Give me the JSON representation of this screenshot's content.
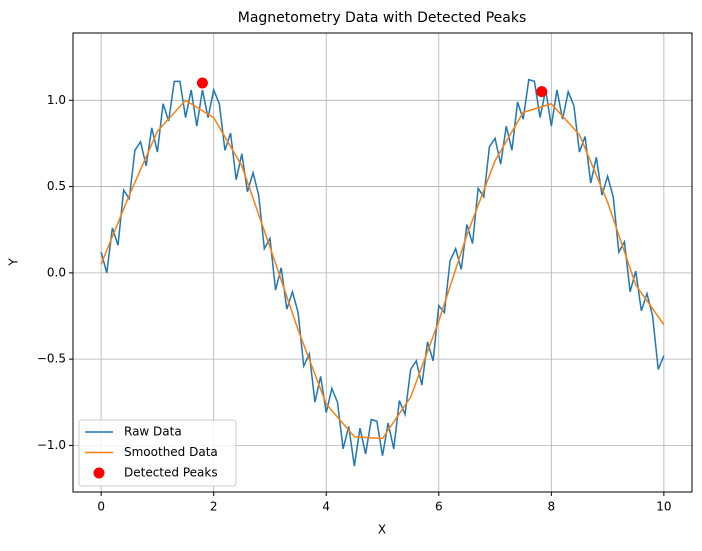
{
  "chart_data": {
    "type": "line",
    "title": "Magnetometry Data with Detected Peaks",
    "x_label": "X",
    "y_label": "Y",
    "xlim": [
      -0.5,
      10.5
    ],
    "ylim": [
      -1.27,
      1.39
    ],
    "xticks": [
      0,
      2,
      4,
      6,
      8,
      10
    ],
    "yticks": [
      {
        "value": -1.0,
        "label": "−1.0"
      },
      {
        "value": -0.5,
        "label": "−0.5"
      },
      {
        "value": 0.0,
        "label": "0.0"
      },
      {
        "value": 0.5,
        "label": "0.5"
      },
      {
        "value": 1.0,
        "label": "1.0"
      }
    ],
    "grid": true,
    "legend": "lower left",
    "series": [
      {
        "name": "Raw Data",
        "color": "#1f77b4",
        "kind": "line",
        "x": [
          0,
          0.1,
          0.2,
          0.3,
          0.4,
          0.5,
          0.6,
          0.7,
          0.8,
          0.9,
          1,
          1.1,
          1.2,
          1.3,
          1.4,
          1.5,
          1.6,
          1.7,
          1.8,
          1.9,
          2,
          2.1,
          2.2,
          2.3,
          2.4,
          2.5,
          2.6,
          2.7,
          2.8,
          2.9,
          3,
          3.1,
          3.2,
          3.3,
          3.4,
          3.5,
          3.6,
          3.7,
          3.8,
          3.9,
          4,
          4.1,
          4.2,
          4.3,
          4.4,
          4.5,
          4.6,
          4.7,
          4.8,
          4.9,
          5,
          5.1,
          5.2,
          5.3,
          5.4,
          5.5,
          5.6,
          5.7,
          5.8,
          5.9,
          6,
          6.1,
          6.2,
          6.3,
          6.4,
          6.5,
          6.6,
          6.7,
          6.8,
          6.9,
          7,
          7.1,
          7.2,
          7.3,
          7.4,
          7.5,
          7.6,
          7.7,
          7.8,
          7.9,
          8,
          8.1,
          8.2,
          8.3,
          8.4,
          8.5,
          8.6,
          8.7,
          8.8,
          8.9,
          9,
          9.1,
          9.2,
          9.3,
          9.4,
          9.5,
          9.6,
          9.7,
          9.8,
          9.9,
          10
        ],
        "values": [
          0.12,
          0,
          0.26,
          0.16,
          0.48,
          0.43,
          0.71,
          0.76,
          0.62,
          0.84,
          0.7,
          0.98,
          0.88,
          1.11,
          1.11,
          0.9,
          1.06,
          0.85,
          1.06,
          0.9,
          1.06,
          0.98,
          0.71,
          0.81,
          0.54,
          0.69,
          0.47,
          0.58,
          0.45,
          0.14,
          0.2,
          -0.1,
          0.03,
          -0.21,
          -0.11,
          -0.23,
          -0.54,
          -0.47,
          -0.75,
          -0.6,
          -0.81,
          -0.67,
          -0.75,
          -1.02,
          -0.89,
          -1.12,
          -0.9,
          -1.05,
          -0.85,
          -0.86,
          -1.06,
          -0.87,
          -1.02,
          -0.74,
          -0.82,
          -0.56,
          -0.51,
          -0.65,
          -0.4,
          -0.51,
          -0.19,
          -0.23,
          0.07,
          0.14,
          0.02,
          0.28,
          0.17,
          0.49,
          0.44,
          0.73,
          0.78,
          0.63,
          0.85,
          0.71,
          0.99,
          0.89,
          1.12,
          1.11,
          0.9,
          1.06,
          0.85,
          1.06,
          0.89,
          1.05,
          0.97,
          0.7,
          0.79,
          0.52,
          0.67,
          0.45,
          0.56,
          0.44,
          0.12,
          0.18,
          -0.11,
          0.01,
          -0.22,
          -0.12,
          -0.25,
          -0.56,
          -0.48
        ]
      },
      {
        "name": "Smoothed Data",
        "color": "#ff7f0e",
        "kind": "line",
        "x": [
          0,
          0.5,
          1,
          1.5,
          2,
          2.5,
          3,
          3.5,
          4,
          4.5,
          5,
          5.5,
          6,
          6.5,
          7,
          7.5,
          8,
          8.5,
          9,
          9.5,
          10
        ],
        "values": [
          0.05,
          0.45,
          0.82,
          1.0,
          0.9,
          0.62,
          0.15,
          -0.33,
          -0.76,
          -0.95,
          -0.96,
          -0.72,
          -0.28,
          0.22,
          0.65,
          0.93,
          0.98,
          0.8,
          0.41,
          -0.07,
          -0.3
        ]
      },
      {
        "name": "Detected Peaks",
        "color": "#ff0000",
        "kind": "marker",
        "x": [
          1.8,
          7.83
        ],
        "values": [
          1.1,
          1.05
        ]
      }
    ]
  }
}
